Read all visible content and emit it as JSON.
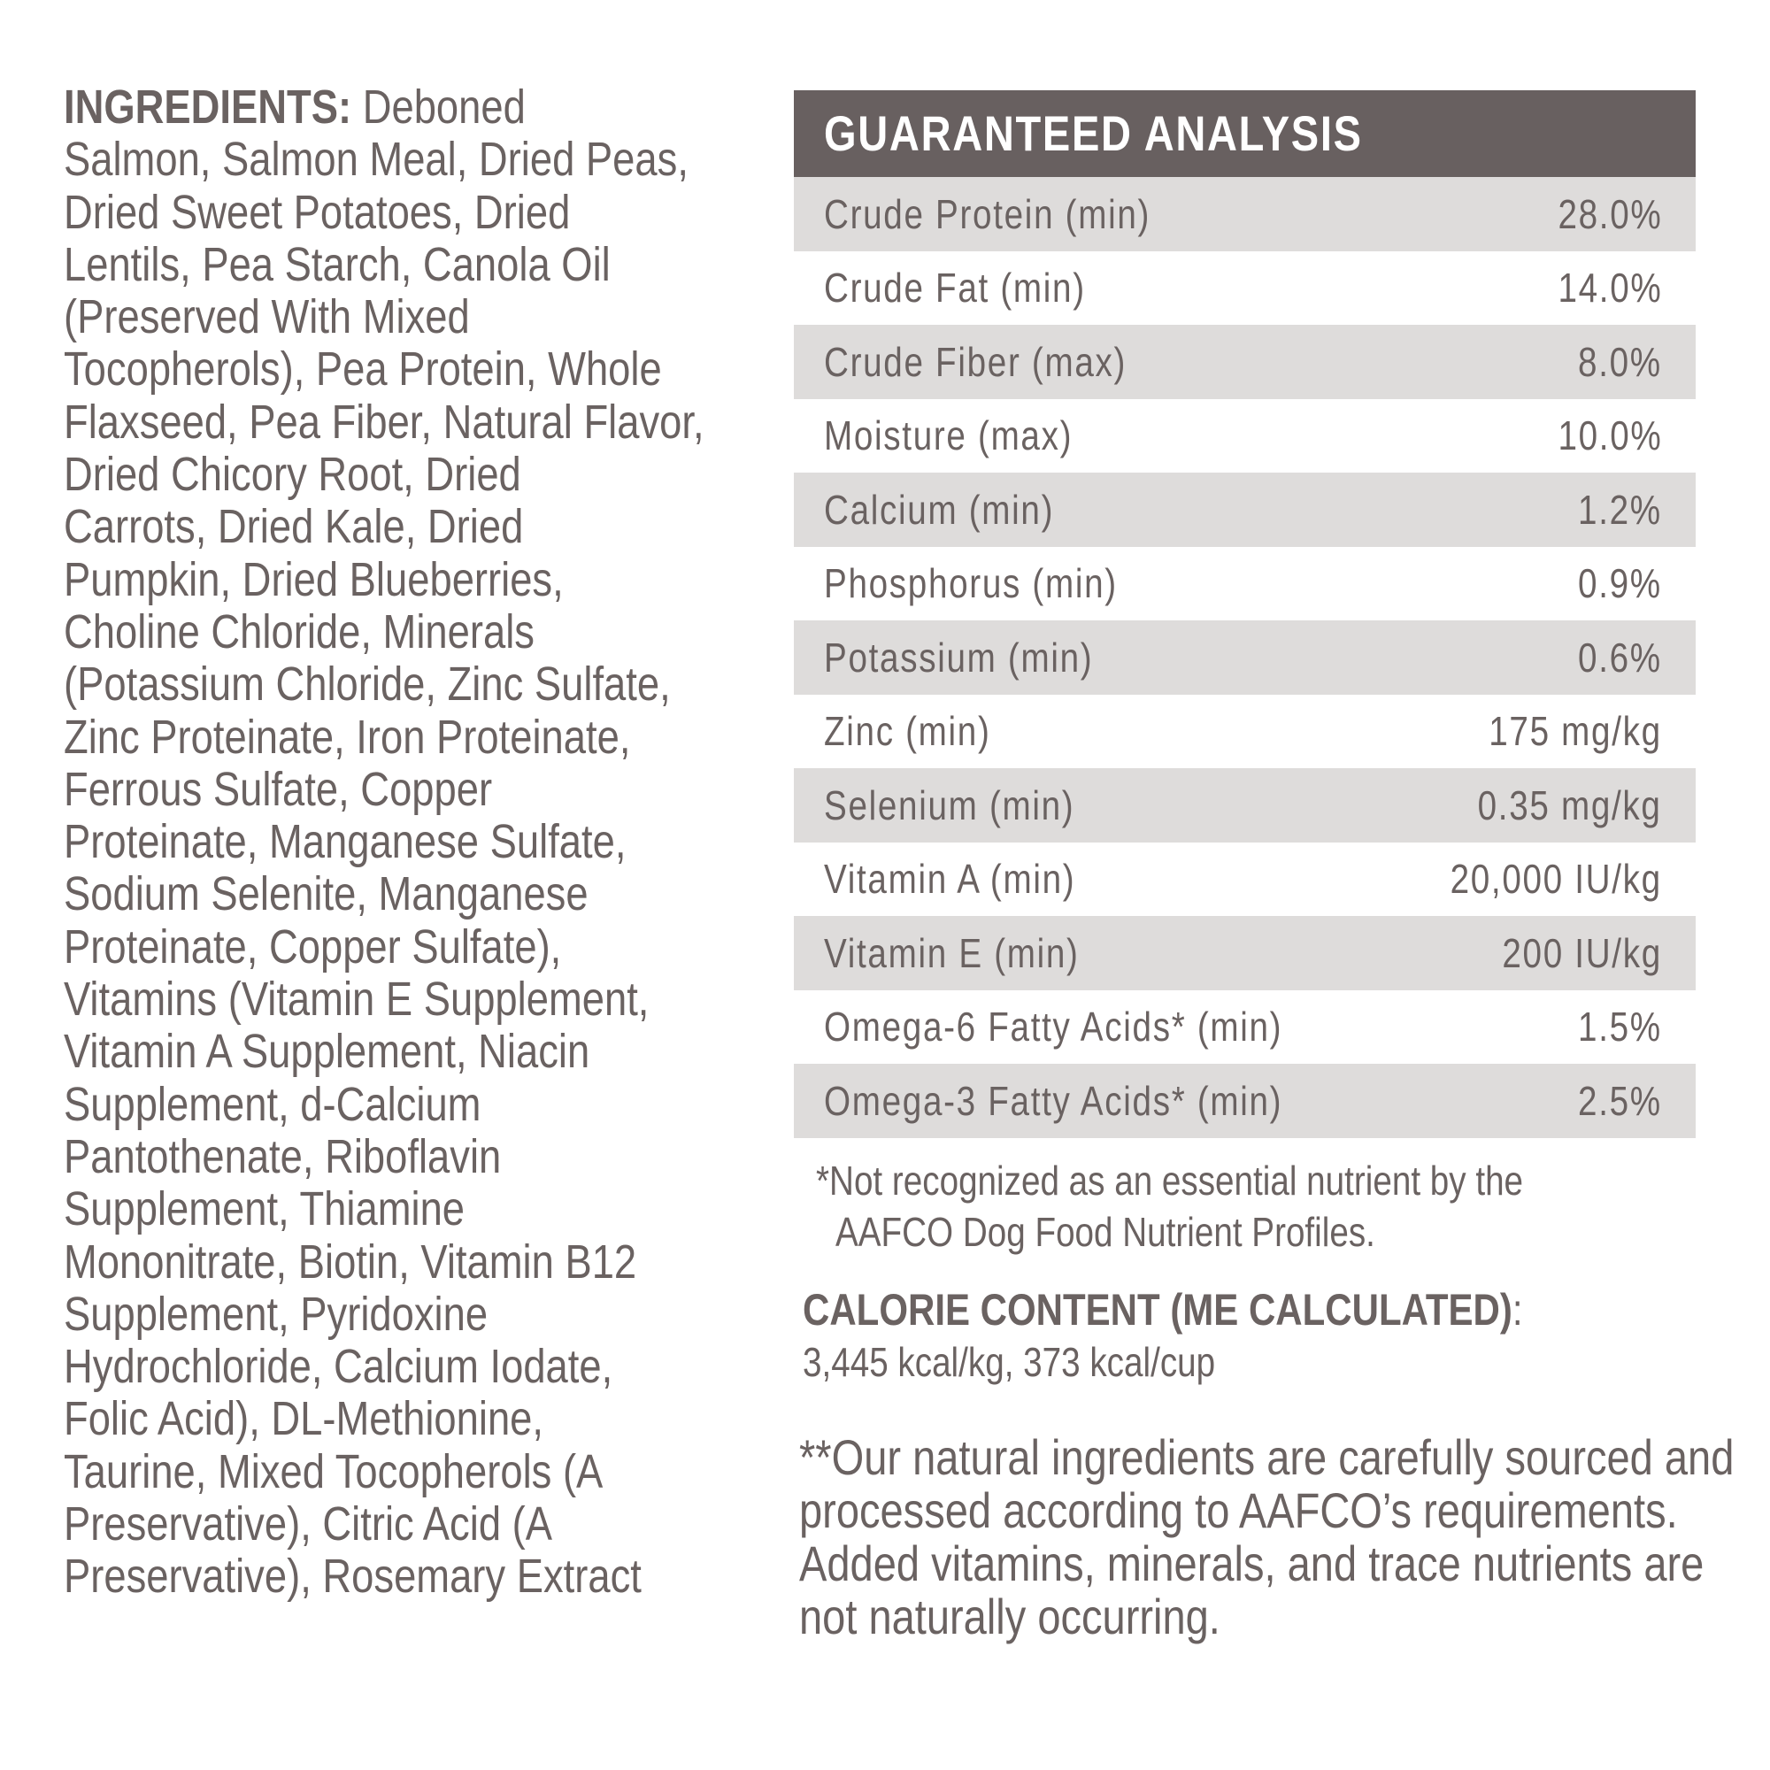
{
  "ingredients": {
    "title": "INGREDIENTS:",
    "first_line_rest": " Deboned",
    "lines": [
      "Salmon, Salmon Meal, Dried Peas,",
      "Dried Sweet Potatoes, Dried",
      "Lentils, Pea Starch, Canola Oil",
      "(Preserved With Mixed",
      "Tocopherols), Pea Protein, Whole",
      "Flaxseed, Pea Fiber, Natural Flavor,",
      "Dried Chicory Root, Dried",
      "Carrots, Dried Kale, Dried",
      "Pumpkin, Dried Blueberries,",
      "Choline Chloride, Minerals",
      "(Potassium Chloride, Zinc Sulfate,",
      "Zinc Proteinate, Iron Proteinate,",
      "Ferrous Sulfate, Copper",
      "Proteinate, Manganese Sulfate,",
      "Sodium Selenite, Manganese",
      "Proteinate, Copper Sulfate),",
      "Vitamins (Vitamin E Supplement,",
      "Vitamin A Supplement, Niacin",
      "Supplement, d-Calcium",
      "Pantothenate, Riboflavin",
      "Supplement, Thiamine",
      "Mononitrate, Biotin, Vitamin B12",
      "Supplement, Pyridoxine",
      "Hydrochloride, Calcium Iodate,",
      "Folic Acid), DL-Methionine,",
      "Taurine, Mixed Tocopherols (A",
      "Preservative), Citric Acid (A",
      "Preservative), Rosemary Extract"
    ]
  },
  "analysis": {
    "title": "GUARANTEED ANALYSIS",
    "rows": [
      {
        "label": "Crude Protein (min)",
        "value": "28.0%"
      },
      {
        "label": "Crude Fat (min)",
        "value": "14.0%"
      },
      {
        "label": "Crude Fiber (max)",
        "value": "8.0%"
      },
      {
        "label": "Moisture (max)",
        "value": "10.0%"
      },
      {
        "label": "Calcium (min)",
        "value": "1.2%"
      },
      {
        "label": "Phosphorus (min)",
        "value": "0.9%"
      },
      {
        "label": "Potassium (min)",
        "value": "0.6%"
      },
      {
        "label": "Zinc (min)",
        "value": "175 mg/kg"
      },
      {
        "label": "Selenium (min)",
        "value": "0.35 mg/kg"
      },
      {
        "label": "Vitamin A (min)",
        "value": "20,000 IU/kg"
      },
      {
        "label": "Vitamin E (min)",
        "value": "200 IU/kg"
      },
      {
        "label": "Omega-6 Fatty Acids* (min)",
        "value": "1.5%"
      },
      {
        "label": "Omega-3 Fatty Acids* (min)",
        "value": "2.5%"
      }
    ],
    "footnote_line1": "*Not recognized as an essential nutrient by the",
    "footnote_line2": "AAFCO Dog Food Nutrient Profiles."
  },
  "calorie": {
    "title": "CALORIE CONTENT (ME CALCULATED)",
    "colon": ":",
    "value": "3,445 kcal/kg, 373 kcal/cup"
  },
  "note": {
    "lines": [
      "**Our natural ingredients are carefully sourced and",
      "processed according to AAFCO’s requirements.",
      "Added vitamins, minerals, and trace nutrients are",
      "not naturally occurring."
    ]
  },
  "colors": {
    "header_bg": "#686060",
    "stripe": "#dedcdb",
    "text": "#6a6261"
  }
}
